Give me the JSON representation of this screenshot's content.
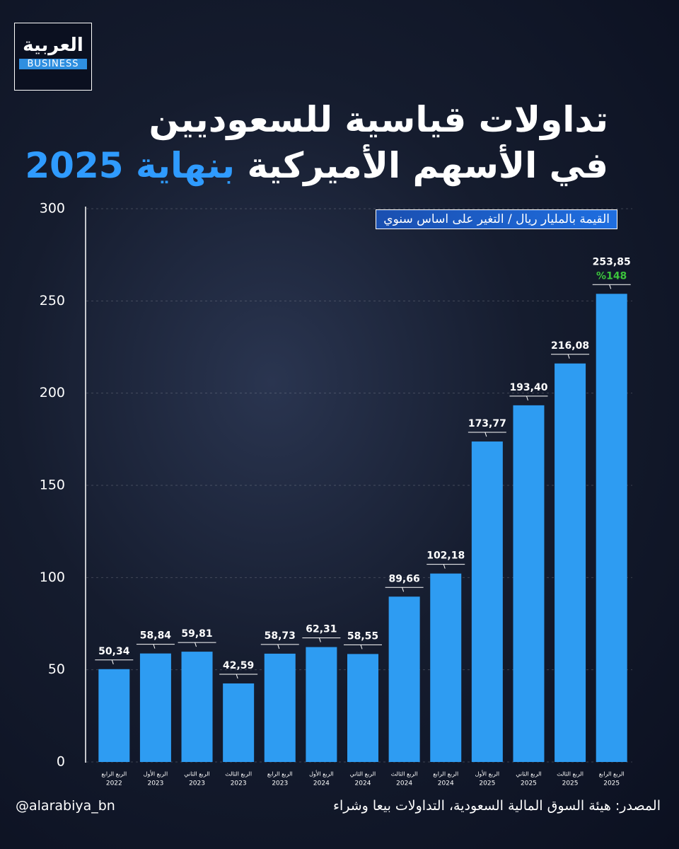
{
  "logo": {
    "text": "العربية",
    "sub": "BUSINESS"
  },
  "footer": {
    "handle": "@alarabiya_bn",
    "source": "المصدر: هيئة السوق المالية السعودية، التداولات بيعا وشراء"
  },
  "chart_data": {
    "type": "bar",
    "title": "تداولات قياسية للسعوديين",
    "title_line2": "في الأسهم الأميركية",
    "title_highlight": "بنهاية 2025",
    "subtitle": "القيمة بالمليار ريال / التغير على اساس سنوي",
    "categories": [
      "الربع الرابع",
      "الربع الأول",
      "الربع الثاني",
      "الربع الثالث",
      "الربع الرابع",
      "الربع الأول",
      "الربع الثاني",
      "الربع الثالث",
      "الربع الرابع",
      "الربع الأول",
      "الربع الثاني",
      "الربع الثالث",
      "الربع الرابع"
    ],
    "category_years": [
      "2022",
      "2023",
      "2023",
      "2023",
      "2023",
      "2024",
      "2024",
      "2024",
      "2024",
      "2025",
      "2025",
      "2025",
      "2025"
    ],
    "values": [
      50.34,
      58.84,
      59.81,
      42.59,
      58.73,
      62.31,
      58.55,
      89.66,
      102.18,
      173.77,
      193.4,
      216.08,
      253.85
    ],
    "value_labels": [
      "50,34",
      "58,84",
      "59,81",
      "42,59",
      "58,73",
      "62,31",
      "58,55",
      "89,66",
      "102,18",
      "173,77",
      "193,40",
      "216,08",
      "253,85"
    ],
    "annotation": "%148",
    "color": "#2e9cf2",
    "ylim": [
      0,
      300
    ],
    "yticks": [
      0,
      50,
      100,
      150,
      200,
      250,
      300
    ],
    "grid": true
  }
}
